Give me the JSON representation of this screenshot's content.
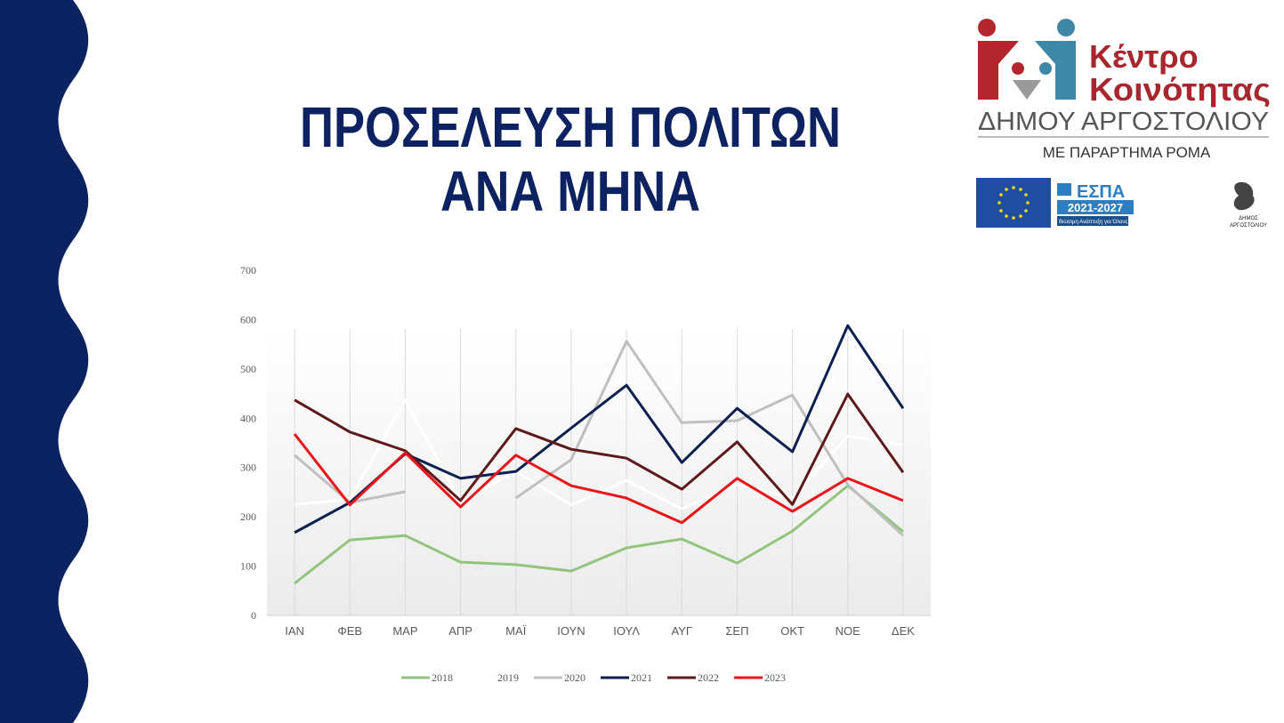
{
  "chart_data": {
    "type": "line",
    "title": [
      "ΠΡΟΣΕΛΕΥΣΗ ΠΟΛΙΤΩΝ",
      "ΑΝΑ ΜΗΝΑ"
    ],
    "categories": [
      "ΙΑΝ",
      "ΦΕΒ",
      "ΜΑΡ",
      "ΑΠΡ",
      "ΜΑΪ",
      "ΙΟΥΝ",
      "ΙΟΥΛ",
      "ΑΥΓ",
      "ΣΕΠ",
      "ΟΚΤ",
      "ΝΟΕ",
      "ΔΕΚ"
    ],
    "series": [
      {
        "name": "2018",
        "color": "#92c47d",
        "values": [
          65,
          153,
          162,
          108,
          103,
          90,
          137,
          155,
          106,
          171,
          263,
          170
        ]
      },
      {
        "name": "2019",
        "color": "#ffffff",
        "values": [
          225,
          235,
          437,
          230,
          292,
          224,
          274,
          216,
          265,
          238,
          364,
          346
        ]
      },
      {
        "name": "2020",
        "color": "#bfbfbf",
        "values": [
          325,
          229,
          251,
          null,
          238,
          316,
          556,
          391,
          395,
          447,
          265,
          162
        ]
      },
      {
        "name": "2021",
        "color": "#0c1f4f",
        "values": [
          168,
          229,
          328,
          278,
          292,
          380,
          467,
          310,
          420,
          332,
          588,
          420
        ]
      },
      {
        "name": "2022",
        "color": "#5e1a1a",
        "values": [
          437,
          372,
          334,
          233,
          379,
          337,
          319,
          256,
          352,
          225,
          449,
          290
        ]
      },
      {
        "name": "2023",
        "color": "#e8141a",
        "values": [
          368,
          224,
          330,
          220,
          325,
          263,
          238,
          188,
          278,
          211,
          278,
          233
        ]
      }
    ],
    "ylim": [
      0,
      700
    ],
    "yticks": [
      0,
      100,
      200,
      300,
      400,
      500,
      600,
      700
    ],
    "vertical_grid": true,
    "legend": "bottom"
  },
  "logos": {
    "center_name": [
      "Κέντρο",
      "Κοινότητας"
    ],
    "municipality": "ΔΗΜΟΥ ΑΡΓΟΣΤΟΛΙΟΥ",
    "annex": "ΜΕ ΠΑΡΑΡΤΗΜΑ ΡΟΜΑ",
    "espa": "ΕΣΠΑ",
    "espa_period": "2021-2027",
    "espa_motto": "Βιώσιμη Ανάπτυξη για Όλους",
    "dimos": [
      "ΔΗΜΟΣ",
      "ΑΡΓΟΣΤΟΛΙΟΥ"
    ]
  }
}
